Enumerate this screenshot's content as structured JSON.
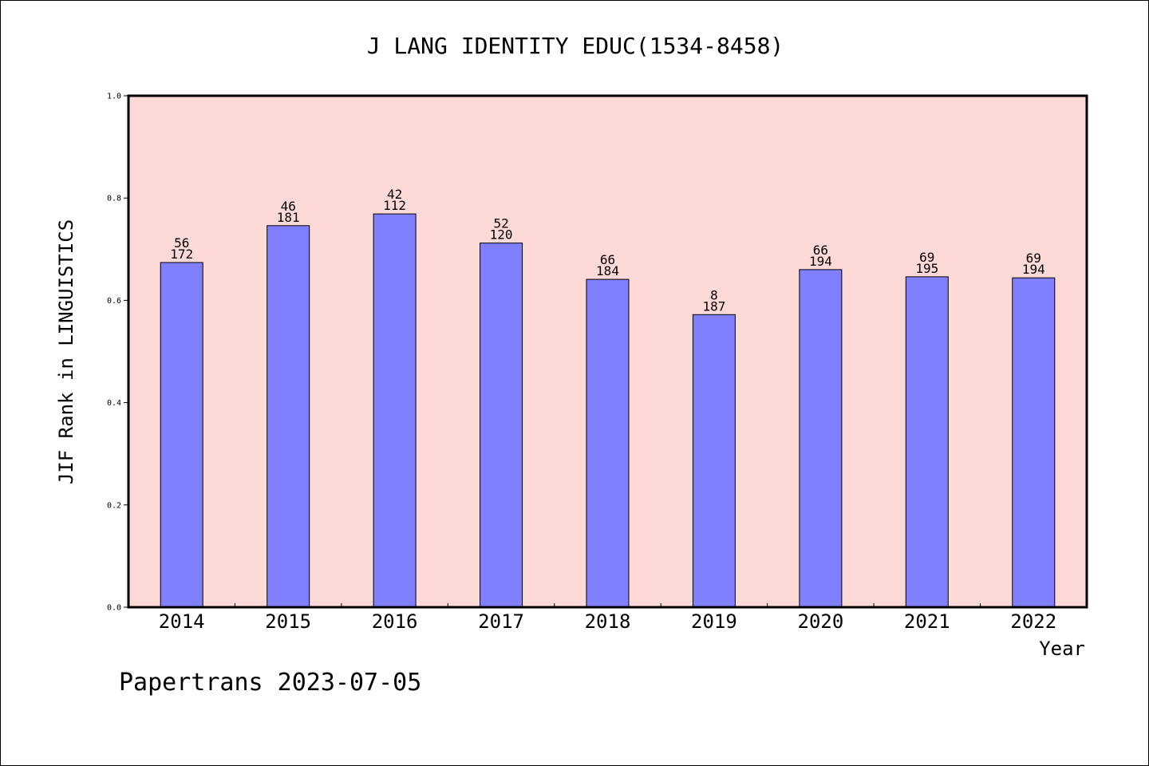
{
  "colors": {
    "plot_bg": "#fddad7",
    "bar_fill": "#8080ff",
    "axis": "#000000"
  },
  "footer": "Papertrans 2023-07-05",
  "chart_data": {
    "type": "bar",
    "title": "J LANG IDENTITY EDUC(1534-8458)",
    "xlabel": "Year",
    "ylabel": "JIF Rank in LINGUISTICS",
    "ylim": [
      0,
      1.0
    ],
    "yticks": [
      "0.0",
      "0.2",
      "0.4",
      "0.6",
      "0.8",
      "1.0"
    ],
    "grid": false,
    "categories": [
      "2014",
      "2015",
      "2016",
      "2017",
      "2018",
      "2019",
      "2020",
      "2021",
      "2022"
    ],
    "values": [
      0.674,
      0.746,
      0.769,
      0.712,
      0.641,
      0.572,
      0.66,
      0.646,
      0.644
    ],
    "rank": [
      "56",
      "46",
      "42",
      "52",
      "66",
      "8",
      "66",
      "69",
      "69"
    ],
    "total": [
      "172",
      "181",
      "112",
      "120",
      "184",
      "187",
      "194",
      "195",
      "194"
    ]
  }
}
